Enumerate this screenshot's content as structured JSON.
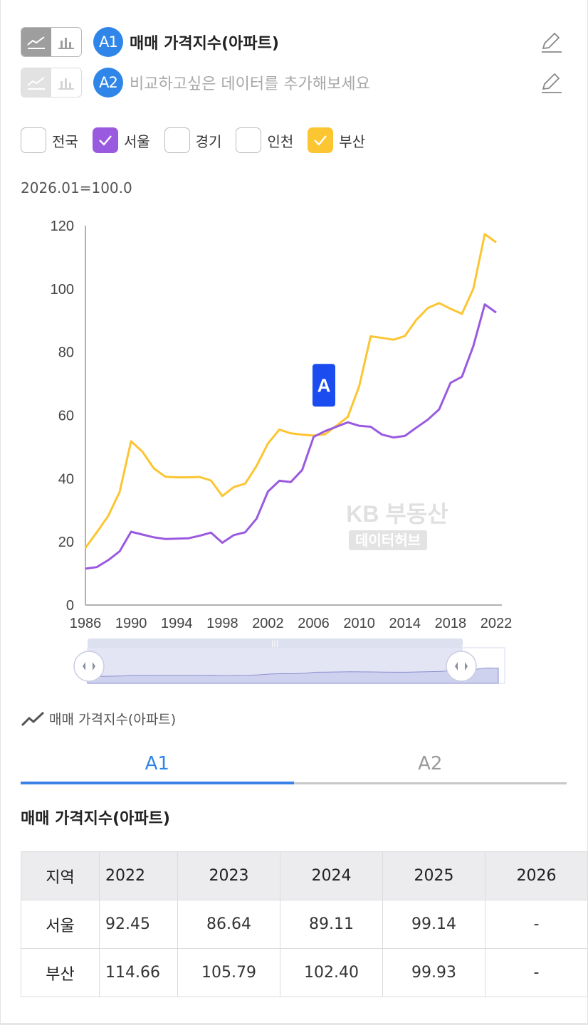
{
  "series": [
    {
      "badge": "A1",
      "label": "매매 가격지수(아파트)",
      "placeholder": false
    },
    {
      "badge": "A2",
      "label": "비교하고싶은 데이터를 추가해보세요",
      "placeholder": true
    }
  ],
  "regions": [
    {
      "label": "전국",
      "checked": false
    },
    {
      "label": "서울",
      "checked": true,
      "color": "#9a5ae0"
    },
    {
      "label": "경기",
      "checked": false
    },
    {
      "label": "인천",
      "checked": false
    },
    {
      "label": "부산",
      "checked": true,
      "color": "#fcc532"
    }
  ],
  "base_note": "2026.01=100.0",
  "chart_data": {
    "type": "line",
    "x": [
      1986,
      1987,
      1988,
      1989,
      1990,
      1991,
      1992,
      1993,
      1994,
      1995,
      1996,
      1997,
      1998,
      1999,
      2000,
      2001,
      2002,
      2003,
      2004,
      2005,
      2006,
      2007,
      2008,
      2009,
      2010,
      2011,
      2012,
      2013,
      2014,
      2015,
      2016,
      2017,
      2018,
      2019,
      2020,
      2021,
      2022
    ],
    "series": [
      {
        "name": "서울",
        "color": "#9a5ae0",
        "values": [
          11.5,
          12,
          14.2,
          17,
          23.2,
          22.3,
          21.4,
          20.9,
          21,
          21.1,
          21.9,
          22.9,
          19.7,
          22.1,
          23,
          27.3,
          35.9,
          39.3,
          38.9,
          42.7,
          53.2,
          55,
          56.4,
          57.8,
          56.7,
          56.4,
          53.9,
          53,
          53.5,
          56.1,
          58.6,
          61.9,
          70.3,
          72.2,
          81.9,
          95.1,
          92.5
        ]
      },
      {
        "name": "부산",
        "color": "#fcc532",
        "values": [
          18.1,
          23,
          28.2,
          35.8,
          51.8,
          48.5,
          43.2,
          40.6,
          40.4,
          40.4,
          40.5,
          39.4,
          34.5,
          37.3,
          38.4,
          44,
          51.1,
          55.5,
          54.3,
          53.9,
          53.6,
          54,
          56.7,
          59.5,
          69.3,
          85,
          84.5,
          83.9,
          85.1,
          90.2,
          93.9,
          95.5,
          93.7,
          92.1,
          100,
          117.3,
          114.7
        ]
      }
    ],
    "xticks": [
      "1986",
      "1990",
      "1994",
      "1998",
      "2002",
      "2006",
      "2010",
      "2014",
      "2018",
      "2022"
    ],
    "yticks": [
      "0",
      "20",
      "40",
      "60",
      "80",
      "100",
      "120"
    ],
    "ylim": [
      0,
      120
    ],
    "xlim": [
      1986,
      2022
    ],
    "marker_label": "A",
    "marker_year": 2006.9,
    "marker_value": 69.5,
    "watermark_line1": "KB 부동산",
    "watermark_line2": "데이터허브"
  },
  "legend_label": "매매 가격지수(아파트)",
  "tabs": [
    "A1",
    "A2"
  ],
  "table": {
    "title": "매매 가격지수(아파트)",
    "header": [
      "지역",
      "2022",
      "2023",
      "2024",
      "2025",
      "2026"
    ],
    "rows": [
      [
        "서울",
        "92.45",
        "86.64",
        "89.11",
        "99.14",
        "-"
      ],
      [
        "부산",
        "114.66",
        "105.79",
        "102.40",
        "99.93",
        "-"
      ]
    ]
  }
}
